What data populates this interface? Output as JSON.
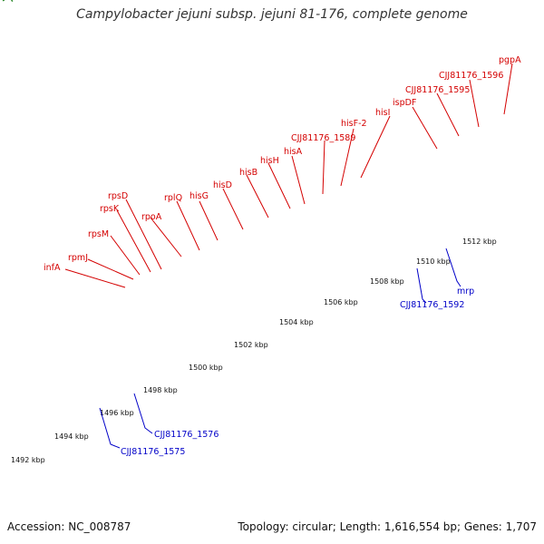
{
  "title": "Campylobacter jejuni subsp. jejuni 81-176, complete genome",
  "footer": {
    "accession": "Accession: NC_008787",
    "summary": "Topology: circular; Length: 1,616,554 bp; Genes: 1,707"
  },
  "ticks": [
    "1492 kbp",
    "1494 kbp",
    "1496 kbp",
    "1498 kbp",
    "1500 kbp",
    "1502 kbp",
    "1504 kbp",
    "1506 kbp",
    "1508 kbp",
    "1510 kbp",
    "1512 kbp"
  ],
  "gene_labels_top": [
    "infA",
    "rpmJ",
    "rpsM",
    "rpsK",
    "rpsD",
    "rpoA",
    "rplQ",
    "hisG",
    "hisD",
    "hisB",
    "hisH",
    "hisA",
    "CJJ81176_1589",
    "hisF-2",
    "hisI",
    "ispDF",
    "CJJ81176_1595",
    "CJJ81176_1596",
    "pgpA"
  ],
  "gene_labels_bottom": [
    "CJJ81176_1575",
    "CJJ81176_1576",
    "CJJ81176_1592",
    "mrp"
  ],
  "colors": {
    "forward_gene": "#e00000",
    "reverse_gene": "#0000e0",
    "backbone": "#8c8c8c",
    "tick": "#2e8b2e"
  }
}
